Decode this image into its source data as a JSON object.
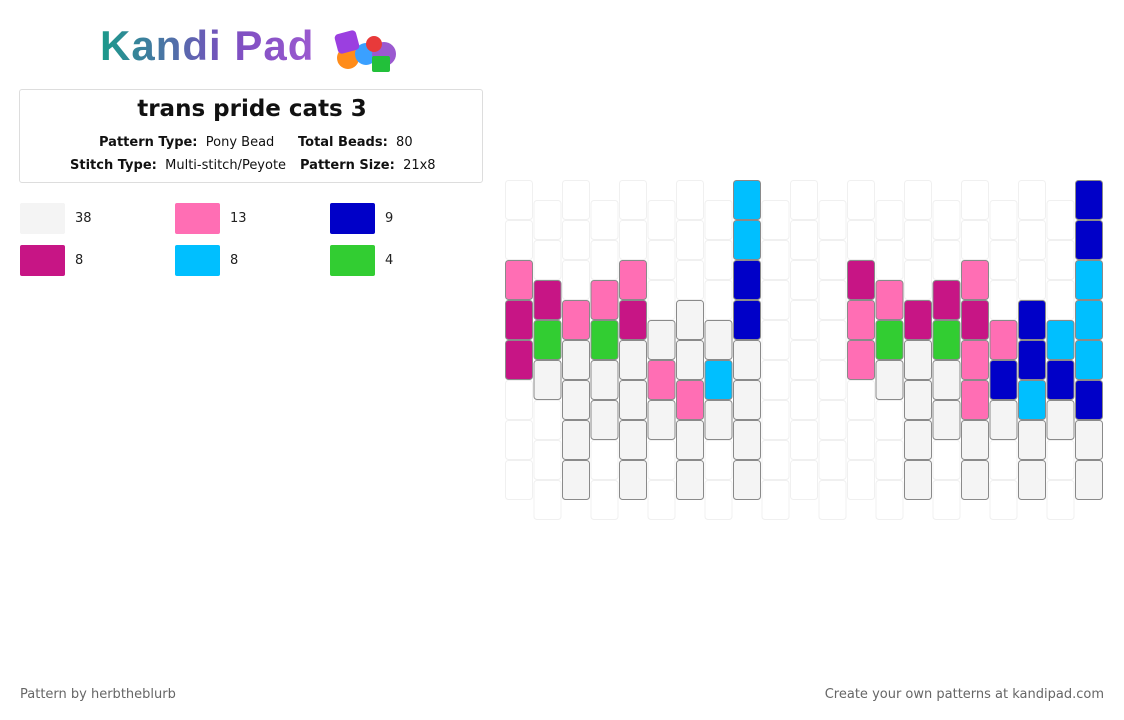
{
  "logo": "Kandi Pad",
  "header": {
    "title": "trans pride cats 3",
    "pattern_type_label": "Pattern Type:",
    "pattern_type": "Pony Bead",
    "total_beads_label": "Total Beads:",
    "total_beads": 80,
    "stitch_type_label": "Stitch Type:",
    "stitch_type": "Multi-stitch/Peyote",
    "pattern_size_label": "Pattern Size:",
    "pattern_size": "21x8"
  },
  "legend": [
    {
      "color": "#f4f4f4",
      "count": 38
    },
    {
      "color": "#ff6eb4",
      "count": 13
    },
    {
      "color": "#0000c8",
      "count": 9
    },
    {
      "color": "#c71585",
      "count": 8
    },
    {
      "color": "#00bfff",
      "count": 8
    },
    {
      "color": "#32cd32",
      "count": 4
    }
  ],
  "grid": [
    "..133...",
    "..350...",
    "...10000",
    "..1500..",
    "..130000",
    "...010..",
    "...00100",
    "...040..",
    "44220000",
    "........",
    "........",
    "........",
    "..311...",
    "..150...",
    "...30000",
    "..3500..",
    "..131100",
    "...120..",
    "...22400",
    "...420..",
    "22444200"
  ],
  "footer": {
    "author": "Pattern by herbtheblurb",
    "credit": "Create your own patterns at kandipad.com"
  }
}
